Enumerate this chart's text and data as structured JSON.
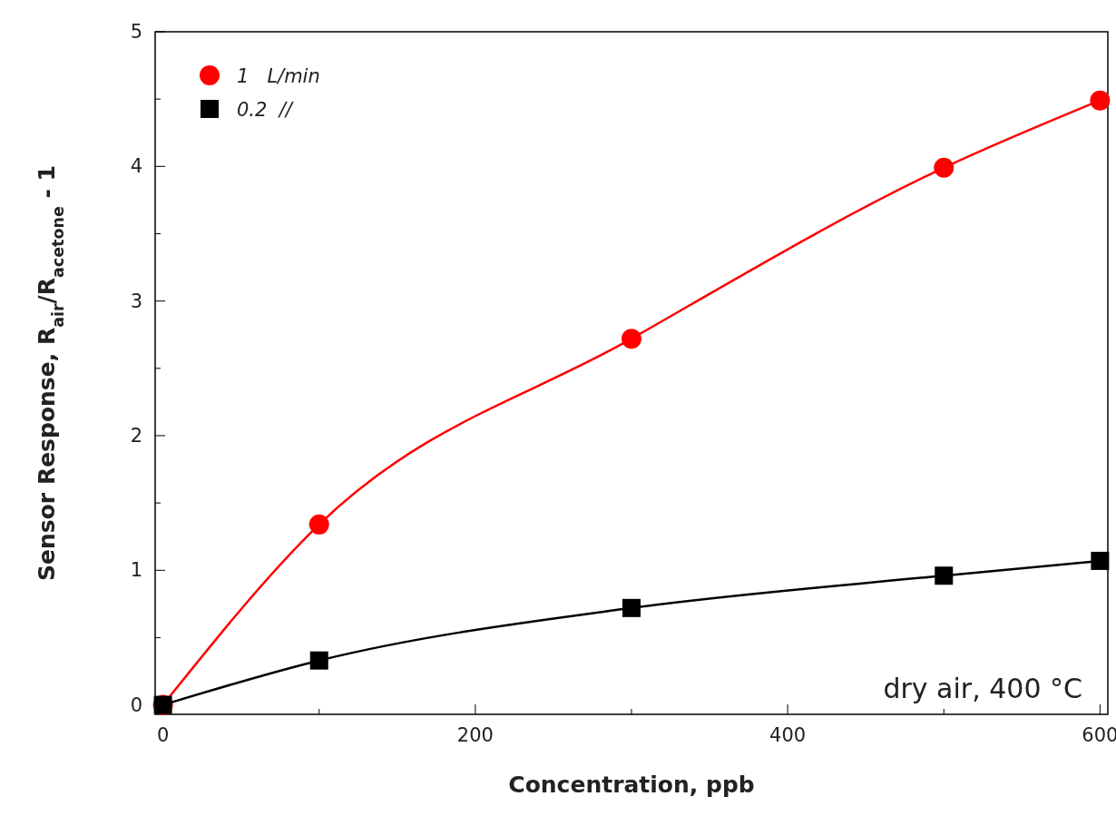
{
  "chart_data": {
    "type": "line",
    "xlabel": "Concentration, ppb",
    "ylabel": "Sensor Response, R$_{air}$/R$_{acetone}$ - 1",
    "x": [
      0,
      100,
      300,
      500,
      600
    ],
    "series": [
      {
        "name": "1   L/min",
        "color": "#ff0000",
        "marker": "circle",
        "values": [
          0,
          1.34,
          2.72,
          3.99,
          4.49
        ]
      },
      {
        "name": "0.2  //",
        "color": "#000000",
        "marker": "square",
        "values": [
          0,
          0.33,
          0.72,
          0.96,
          1.07
        ]
      }
    ],
    "xlim": [
      -5,
      605
    ],
    "ylim": [
      -0.07,
      5
    ],
    "xticks": [
      0,
      {
        "value": 100,
        "label": null
      },
      200,
      {
        "value": 300,
        "label": null
      },
      400,
      {
        "value": 500,
        "label": null
      },
      600
    ],
    "yticks": [
      0,
      {
        "value": 0.5,
        "label": null
      },
      1,
      {
        "value": 1.5,
        "label": null
      },
      2,
      {
        "value": 2.5,
        "label": null
      },
      3,
      {
        "value": 3.5,
        "label": null
      },
      4,
      {
        "value": 4.5,
        "label": null
      },
      5
    ],
    "annotations": [
      "dry air, 400 °C"
    ],
    "legend": "top left",
    "grid": false,
    "line_style": "solid"
  }
}
